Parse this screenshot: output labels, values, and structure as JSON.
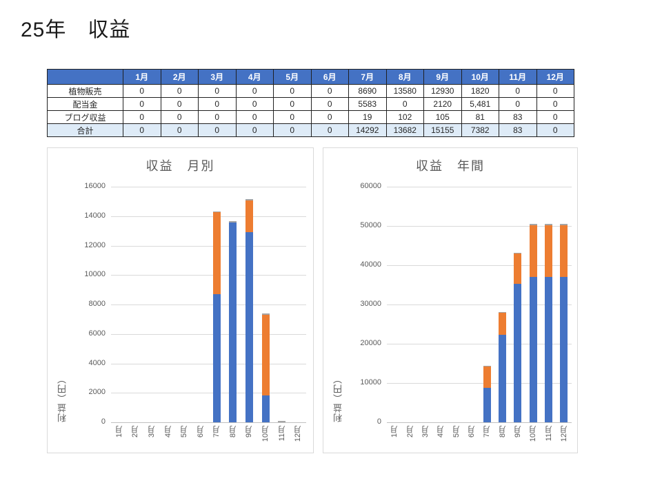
{
  "page": {
    "title": "25年　収益"
  },
  "theme": {
    "table_header_bg": "#4472C4",
    "table_header_fg": "#FFFFFF",
    "total_row_bg": "#DEEBF7",
    "series_blue": "#4472C4",
    "series_orange": "#ED7D31",
    "series_gray": "#A5A5A5",
    "chart_text": "#595959",
    "gridline": "#D9D9D9"
  },
  "table": {
    "col_headers": [
      "",
      "1月",
      "2月",
      "3月",
      "4月",
      "5月",
      "6月",
      "7月",
      "8月",
      "9月",
      "10月",
      "11月",
      "12月"
    ],
    "rows": [
      {
        "label": "植物販売",
        "is_total": false,
        "values": [
          "0",
          "0",
          "0",
          "0",
          "0",
          "0",
          "8690",
          "13580",
          "12930",
          "1820",
          "0",
          "0"
        ]
      },
      {
        "label": "配当金",
        "is_total": false,
        "values": [
          "0",
          "0",
          "0",
          "0",
          "0",
          "0",
          "5583",
          "0",
          "2120",
          "5,481",
          "0",
          "0"
        ]
      },
      {
        "label": "ブログ収益",
        "is_total": false,
        "values": [
          "0",
          "0",
          "0",
          "0",
          "0",
          "0",
          "19",
          "102",
          "105",
          "81",
          "83",
          "0"
        ]
      },
      {
        "label": "合計",
        "is_total": true,
        "values": [
          "0",
          "0",
          "0",
          "0",
          "0",
          "0",
          "14292",
          "13682",
          "15155",
          "7382",
          "83",
          "0"
        ]
      }
    ]
  },
  "chart_data": [
    {
      "type": "bar",
      "stacked": true,
      "title": "収益　月別",
      "ylabel": "利益（円）",
      "categories": [
        "1月",
        "2月",
        "3月",
        "4月",
        "5月",
        "6月",
        "7月",
        "8月",
        "9月",
        "10月",
        "11月",
        "12月"
      ],
      "series": [
        {
          "name": "植物販売",
          "color": "#4472C4",
          "values": [
            0,
            0,
            0,
            0,
            0,
            0,
            8690,
            13580,
            12930,
            1820,
            0,
            0
          ]
        },
        {
          "name": "配当金",
          "color": "#ED7D31",
          "values": [
            0,
            0,
            0,
            0,
            0,
            0,
            5583,
            0,
            2120,
            5481,
            0,
            0
          ]
        },
        {
          "name": "ブログ収益",
          "color": "#A5A5A5",
          "values": [
            0,
            0,
            0,
            0,
            0,
            0,
            19,
            102,
            105,
            81,
            83,
            0
          ]
        }
      ],
      "ylim": [
        0,
        16000
      ],
      "ytick_step": 2000,
      "grid": true,
      "legend": false
    },
    {
      "type": "bar",
      "stacked": true,
      "title": "収益　年間",
      "ylabel": "利益（円）",
      "categories": [
        "1月",
        "2月",
        "3月",
        "4月",
        "5月",
        "6月",
        "7月",
        "8月",
        "9月",
        "10月",
        "11月",
        "12月"
      ],
      "series": [
        {
          "name": "植物販売",
          "color": "#4472C4",
          "values": [
            0,
            0,
            0,
            0,
            0,
            0,
            8690,
            22270,
            35200,
            37020,
            37020,
            37020
          ]
        },
        {
          "name": "配当金",
          "color": "#ED7D31",
          "values": [
            0,
            0,
            0,
            0,
            0,
            0,
            5583,
            5583,
            7703,
            13184,
            13184,
            13184
          ]
        },
        {
          "name": "ブログ収益",
          "color": "#A5A5A5",
          "values": [
            0,
            0,
            0,
            0,
            0,
            0,
            19,
            121,
            226,
            307,
            390,
            390
          ]
        }
      ],
      "ylim": [
        0,
        60000
      ],
      "ytick_step": 10000,
      "grid": true,
      "legend": false
    }
  ]
}
